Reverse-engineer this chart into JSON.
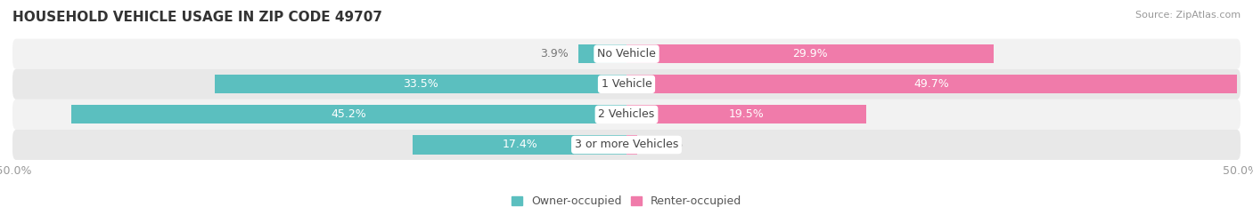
{
  "title": "HOUSEHOLD VEHICLE USAGE IN ZIP CODE 49707",
  "source": "Source: ZipAtlas.com",
  "categories": [
    "No Vehicle",
    "1 Vehicle",
    "2 Vehicles",
    "3 or more Vehicles"
  ],
  "owner_values": [
    3.9,
    33.5,
    45.2,
    17.4
  ],
  "renter_values": [
    29.9,
    49.7,
    19.5,
    0.87
  ],
  "owner_color": "#5BBFBF",
  "renter_color": "#F07BAA",
  "owner_color_light": "#A8DCDC",
  "renter_color_light": "#F5AECB",
  "axis_label_color": "#999999",
  "xlim": [
    -50,
    50
  ],
  "bar_height": 0.62,
  "background_color": "#FFFFFF",
  "title_fontsize": 11,
  "label_fontsize": 9,
  "tick_fontsize": 9,
  "legend_fontsize": 9,
  "source_fontsize": 8,
  "row_bg_color_light": "#F2F2F2",
  "row_bg_color_dark": "#E8E8E8",
  "center_label_bg": "#FFFFFF",
  "owner_label_threshold": 8,
  "renter_label_threshold": 5
}
